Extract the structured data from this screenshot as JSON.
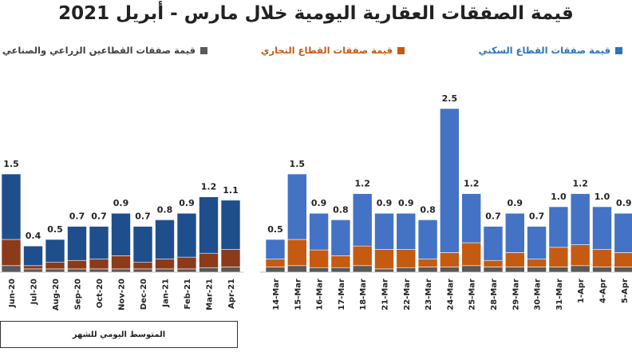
{
  "title": "قيمة الصفقات العقارية اليومية خلال مارس - أبريل 2021",
  "legend": [
    {
      "key": "res",
      "label": "قيمة صفقات القطاع السكني",
      "color": "#2E75B6"
    },
    {
      "key": "com",
      "label": "قيمة صفقات القطاع التجاري",
      "color": "#C55A11"
    },
    {
      "key": "ind",
      "label": "قيمة صفقات القطاعين الزراعي والصناعي",
      "color": "#595959"
    }
  ],
  "monthly_caption": "المتوسط اليومي للشهر",
  "chart_data": [
    {
      "type": "bar",
      "stacked": true,
      "categories": [
        "Jun-20",
        "Jul-20",
        "Aug-20",
        "Sep-20",
        "Oct-20",
        "Nov-20",
        "Dec-20",
        "Jan-21",
        "Feb-21",
        "Mar-21",
        "Apr-21"
      ],
      "totals_labels": [
        "1.5",
        "0.4",
        "0.5",
        "0.7",
        "0.7",
        "0.9",
        "0.7",
        "0.8",
        "0.9",
        "1.2",
        "1.1"
      ],
      "series": [
        {
          "key": "res",
          "values": [
            1.0,
            0.3,
            0.35,
            0.52,
            0.5,
            0.65,
            0.55,
            0.6,
            0.67,
            0.86,
            0.75
          ],
          "color": "#1F4E8C"
        },
        {
          "key": "com",
          "values": [
            0.4,
            0.05,
            0.1,
            0.13,
            0.15,
            0.2,
            0.1,
            0.15,
            0.18,
            0.22,
            0.27
          ],
          "color": "#8B3A1A"
        },
        {
          "key": "ind",
          "values": [
            0.1,
            0.05,
            0.05,
            0.05,
            0.05,
            0.05,
            0.05,
            0.05,
            0.05,
            0.07,
            0.08
          ],
          "color": "#595959"
        }
      ],
      "ylim": [
        0,
        2.6
      ]
    },
    {
      "type": "bar",
      "stacked": true,
      "categories": [
        "14-Mar",
        "15-Mar",
        "16-Mar",
        "17-Mar",
        "18-Mar",
        "21-Mar",
        "22-Mar",
        "23-Mar",
        "24-Mar",
        "25-Mar",
        "28-Mar",
        "29-Mar",
        "30-Mar",
        "31-Mar",
        "1-Apr",
        "4-Apr",
        "5-Apr"
      ],
      "totals_labels": [
        "0.5",
        "1.5",
        "0.9",
        "0.8",
        "1.2",
        "0.9",
        "0.9",
        "0.8",
        "2.5",
        "1.2",
        "0.7",
        "0.9",
        "0.7",
        "1.0",
        "1.2",
        "1.0",
        "0.9"
      ],
      "series": [
        {
          "key": "res",
          "values": [
            0.3,
            1.0,
            0.56,
            0.55,
            0.8,
            0.55,
            0.55,
            0.6,
            2.2,
            0.75,
            0.52,
            0.6,
            0.5,
            0.62,
            0.78,
            0.65,
            0.6
          ],
          "color": "#4472C4"
        },
        {
          "key": "com",
          "values": [
            0.12,
            0.4,
            0.27,
            0.18,
            0.3,
            0.3,
            0.28,
            0.12,
            0.22,
            0.35,
            0.1,
            0.22,
            0.12,
            0.3,
            0.32,
            0.27,
            0.22
          ],
          "color": "#C55A11"
        },
        {
          "key": "ind",
          "values": [
            0.08,
            0.1,
            0.07,
            0.07,
            0.1,
            0.05,
            0.07,
            0.08,
            0.08,
            0.1,
            0.08,
            0.08,
            0.08,
            0.08,
            0.1,
            0.08,
            0.08
          ],
          "color": "#595959"
        }
      ],
      "ylim": [
        0,
        2.6
      ]
    }
  ]
}
